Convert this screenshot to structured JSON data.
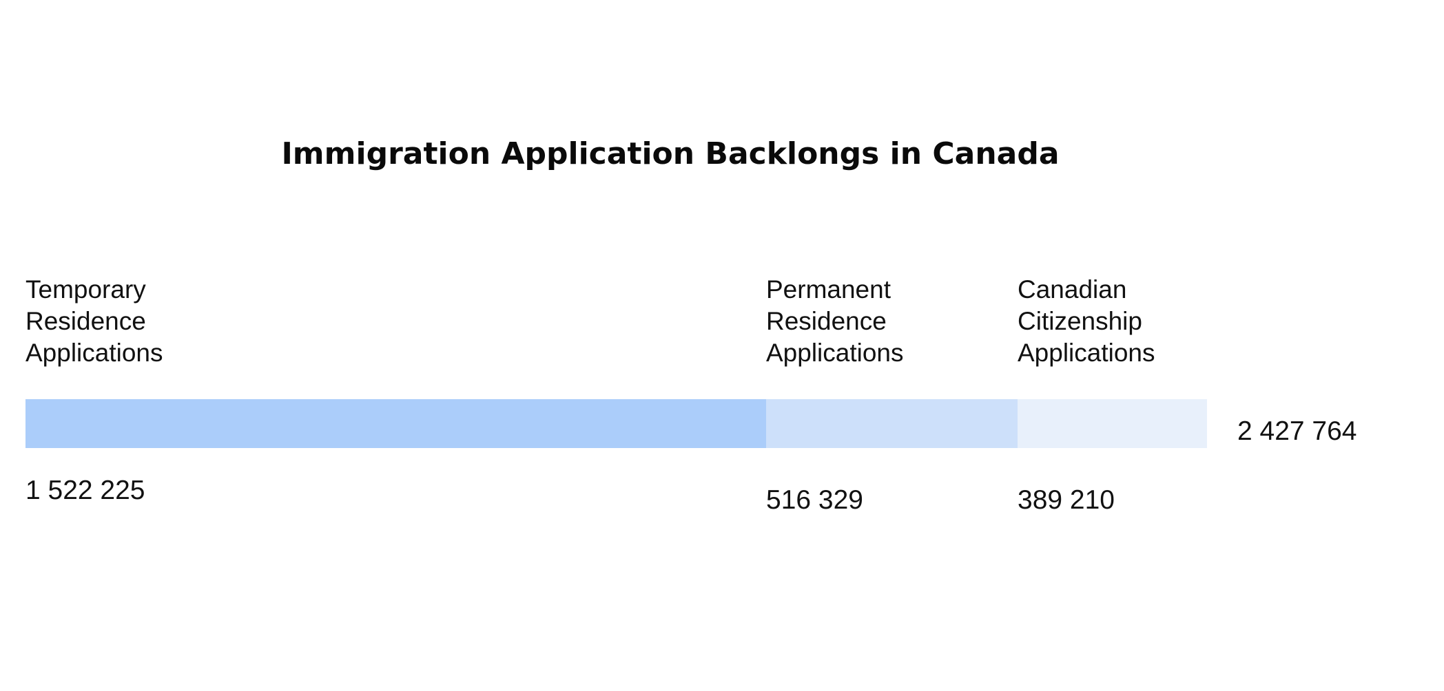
{
  "chart_data": {
    "type": "bar",
    "orientation": "horizontal-stacked",
    "title": "Immigration Application Backlongs in Canada",
    "categories": [
      "Temporary Residence Applications",
      "Permanent Residence Applications",
      "Canadian Citizenship Applications"
    ],
    "label_lines": [
      [
        "Temporary",
        "Residence",
        "Applications"
      ],
      [
        "Permanent",
        "Residence",
        "Applications"
      ],
      [
        "Canadian",
        "Citizenship",
        "Applications"
      ]
    ],
    "values": [
      1522225,
      516329,
      389210
    ],
    "value_labels": [
      "1 522 225",
      "516 329",
      "389 210"
    ],
    "colors": [
      "#abcdfa",
      "#cde0fa",
      "#e8f0fb"
    ],
    "total": 2427764,
    "total_label": "2 427 764",
    "legend": "none",
    "grid": false
  }
}
